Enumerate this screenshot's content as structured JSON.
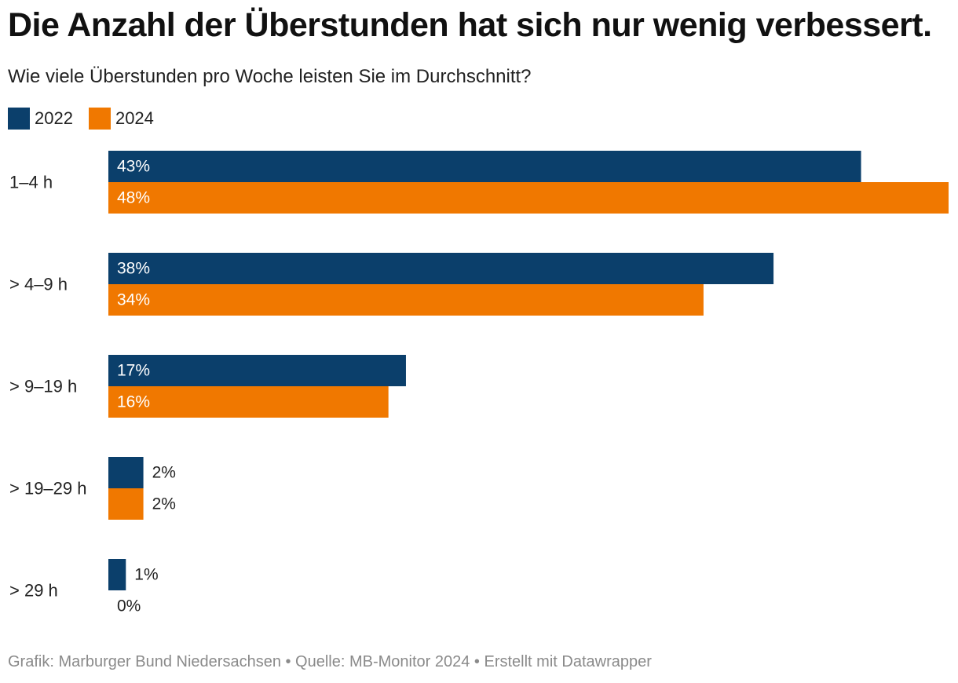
{
  "header": {
    "title": "Die Anzahl der Überstunden hat sich nur wenig verbessert.",
    "subtitle": "Wie viele Überstunden pro Woche leisten Sie im Durchschnitt?"
  },
  "footer": {
    "credit": "Grafik: Marburger Bund Niedersachsen • Quelle: MB-Monitor 2024 • Erstellt mit Datawrapper"
  },
  "colors": {
    "series_2022": "#0b3f6b",
    "series_2024": "#f07800",
    "label_inside": "#ffffff",
    "label_outside": "#222222"
  },
  "chart_data": {
    "type": "bar",
    "orientation": "horizontal",
    "categories": [
      "1–4 h",
      "> 4–9 h",
      "> 9–19 h",
      "> 19–29 h",
      "> 29 h"
    ],
    "series": [
      {
        "name": "2022",
        "values": [
          43,
          38,
          17,
          2,
          1
        ],
        "labels": [
          "43%",
          "38%",
          "17%",
          "2%",
          "1%"
        ]
      },
      {
        "name": "2024",
        "values": [
          48,
          34,
          16,
          2,
          0
        ],
        "labels": [
          "48%",
          "34%",
          "16%",
          "2%",
          "0%"
        ]
      }
    ],
    "xlim": [
      0,
      48
    ],
    "unit": "%",
    "legend_position": "top-left",
    "grid": false
  }
}
